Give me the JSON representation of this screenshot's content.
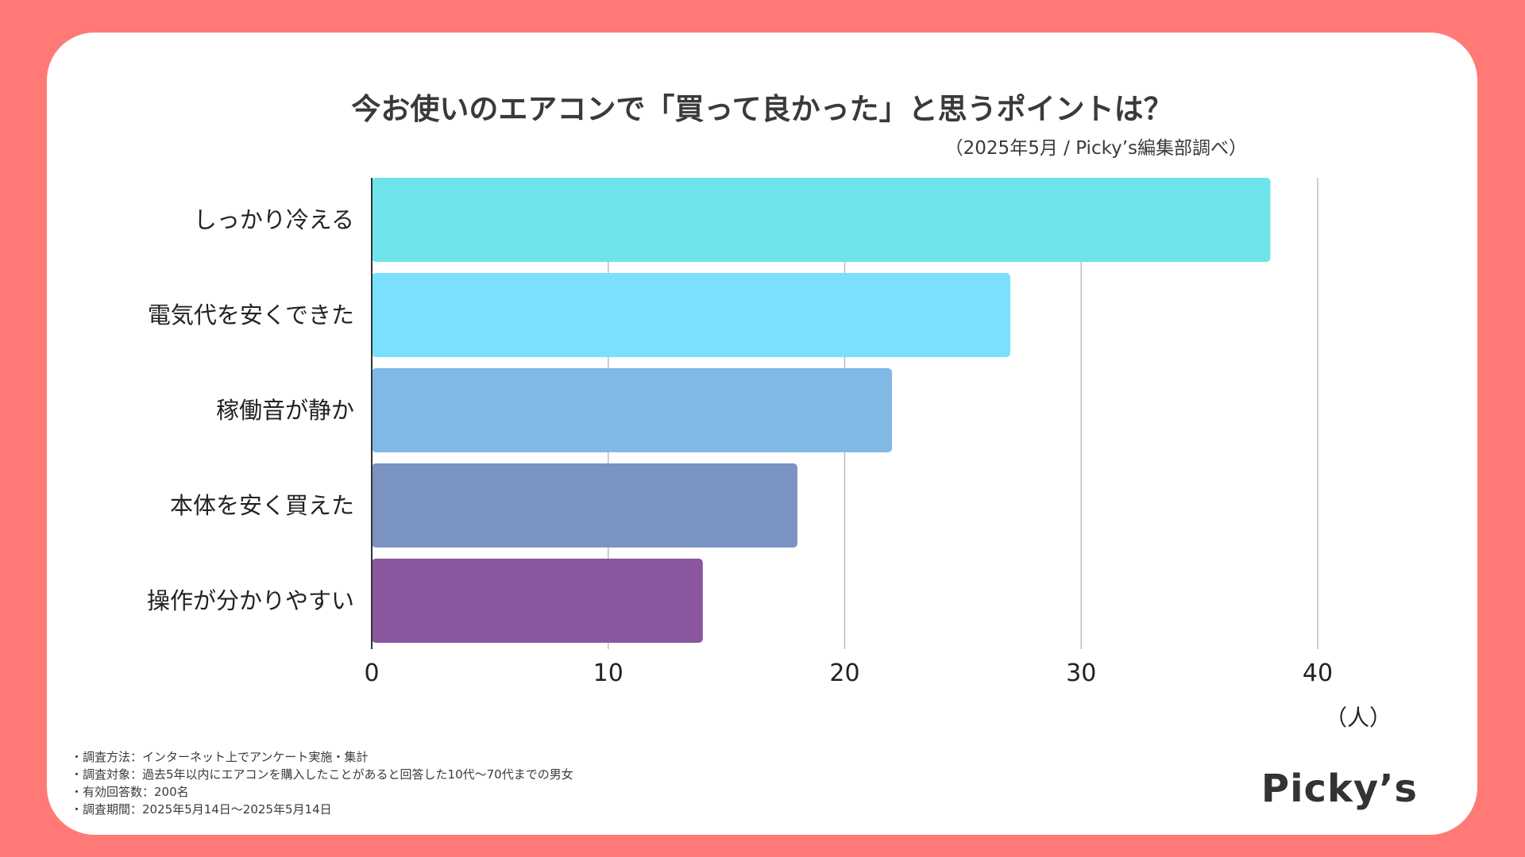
{
  "chart_data": {
    "type": "bar",
    "orientation": "horizontal",
    "title": "今お使いのエアコンで「買って良かった」と思うポイントは？",
    "subtitle": "（2025年5月 / Picky’s編集部調べ）",
    "categories": [
      "しっかり冷える",
      "電気代を安くできた",
      "稼働音が静か",
      "本体を安く買えた",
      "操作が分かりやすい"
    ],
    "values": [
      38,
      27,
      22,
      18,
      14
    ],
    "colors": [
      "#6ce4e9",
      "#7be0fd",
      "#80b8e6",
      "#7b93c3",
      "#8a569d"
    ],
    "xlim": [
      0,
      40
    ],
    "xticks": [
      "0",
      "10",
      "20",
      "30",
      "40"
    ],
    "xlabel": "（人）",
    "ylabel": "",
    "grid": true
  },
  "notes": [
    "・調査方法：インターネット上でアンケート実施・集計",
    "・調査対象：過去5年以内にエアコンを購入したことがあると回答した10代〜70代までの男女",
    "・有効回答数：200名",
    "・調査期間：2025年5月14日〜2025年5月14日"
  ],
  "logo": "Picky’s",
  "colors": {
    "background": "#ff7a76",
    "card": "#ffffff",
    "grid": "#bdbdbd",
    "text": "#3a3a3a"
  }
}
